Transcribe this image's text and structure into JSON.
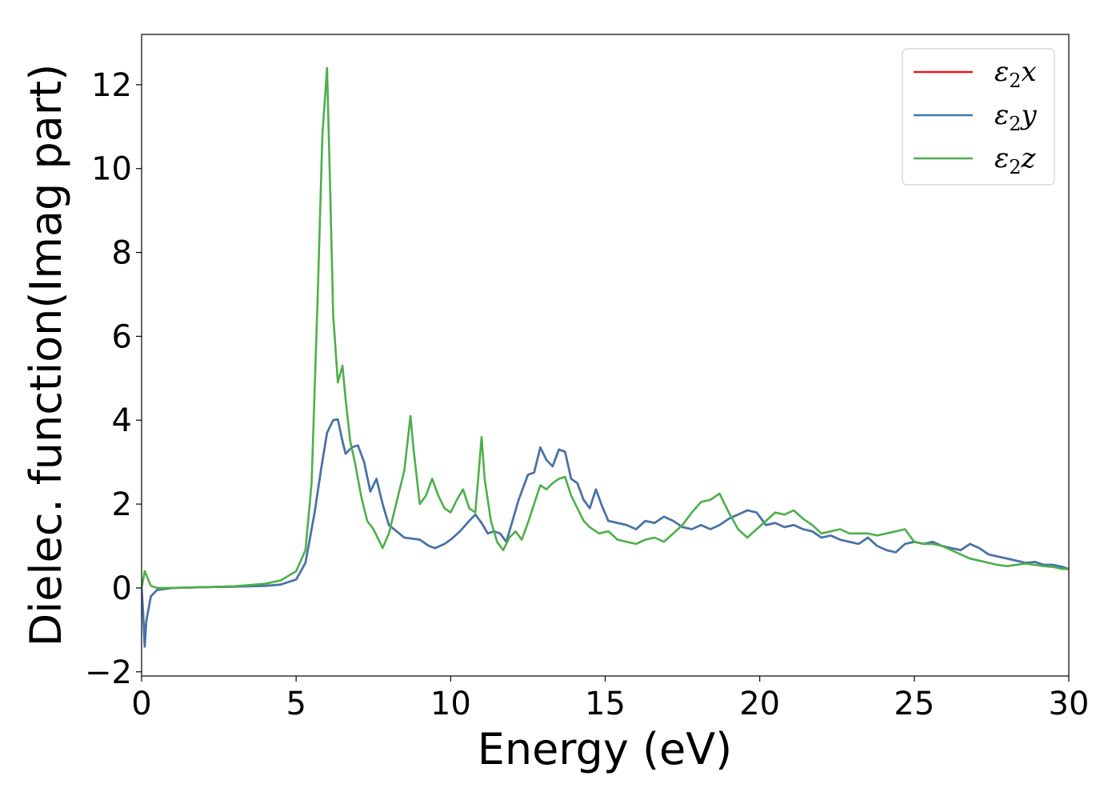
{
  "chart_data": {
    "type": "line",
    "title": "",
    "xlabel": "Energy (eV)",
    "ylabel": "Dielec. function(Imag part)",
    "xlim": [
      0,
      30
    ],
    "ylim": [
      -2.1,
      13.2
    ],
    "xticks": [
      0,
      5,
      10,
      15,
      20,
      25,
      30
    ],
    "yticks": [
      -2,
      0,
      2,
      4,
      6,
      8,
      10,
      12
    ],
    "xtick_labels": [
      "0",
      "5",
      "10",
      "15",
      "20",
      "25",
      "30"
    ],
    "ytick_labels": [
      "−2",
      "0",
      "2",
      "4",
      "6",
      "8",
      "10",
      "12"
    ],
    "grid": false,
    "legend_position": "upper right",
    "series": [
      {
        "name": "ε₂x",
        "label_sub": [
          "ε",
          "2",
          "x"
        ],
        "color": "#e41a1c",
        "x": [
          0.0,
          0.05,
          0.1,
          0.15,
          0.3,
          0.5,
          1.0,
          2.0,
          3.0,
          4.0,
          4.5,
          5.0,
          5.3,
          5.6,
          5.8,
          6.0,
          6.2,
          6.35,
          6.5,
          6.6,
          6.8,
          7.0,
          7.2,
          7.4,
          7.6,
          7.8,
          8.0,
          8.5,
          9.0,
          9.3,
          9.5,
          9.8,
          10.0,
          10.3,
          10.6,
          10.8,
          11.0,
          11.2,
          11.4,
          11.6,
          11.8,
          12.0,
          12.2,
          12.5,
          12.7,
          12.9,
          13.1,
          13.3,
          13.5,
          13.7,
          13.9,
          14.1,
          14.3,
          14.5,
          14.7,
          14.9,
          15.1,
          15.4,
          15.7,
          16.0,
          16.3,
          16.6,
          16.9,
          17.2,
          17.5,
          17.8,
          18.1,
          18.4,
          18.7,
          19.0,
          19.3,
          19.6,
          19.9,
          20.2,
          20.5,
          20.8,
          21.1,
          21.4,
          21.7,
          22.0,
          22.3,
          22.6,
          22.9,
          23.2,
          23.5,
          23.8,
          24.1,
          24.4,
          24.7,
          25.0,
          25.3,
          25.6,
          25.9,
          26.2,
          26.5,
          26.8,
          27.1,
          27.4,
          27.7,
          28.0,
          28.3,
          28.6,
          28.9,
          29.2,
          29.5,
          29.8,
          30.0
        ],
        "y": [
          0.0,
          -0.6,
          -1.4,
          -0.8,
          -0.2,
          -0.05,
          0.0,
          0.02,
          0.03,
          0.05,
          0.08,
          0.2,
          0.6,
          1.8,
          2.8,
          3.7,
          4.0,
          4.02,
          3.5,
          3.2,
          3.35,
          3.4,
          3.0,
          2.3,
          2.6,
          2.0,
          1.5,
          1.2,
          1.15,
          1.0,
          0.95,
          1.05,
          1.15,
          1.35,
          1.6,
          1.75,
          1.55,
          1.3,
          1.35,
          1.3,
          1.1,
          1.6,
          2.1,
          2.7,
          2.75,
          3.35,
          3.05,
          2.9,
          3.3,
          3.25,
          2.6,
          2.5,
          2.1,
          1.9,
          2.35,
          1.95,
          1.6,
          1.55,
          1.5,
          1.4,
          1.6,
          1.55,
          1.7,
          1.6,
          1.45,
          1.4,
          1.5,
          1.4,
          1.5,
          1.65,
          1.75,
          1.85,
          1.8,
          1.5,
          1.55,
          1.45,
          1.5,
          1.4,
          1.35,
          1.2,
          1.25,
          1.15,
          1.1,
          1.05,
          1.2,
          1.0,
          0.9,
          0.85,
          1.05,
          1.1,
          1.05,
          1.1,
          1.0,
          0.95,
          0.9,
          1.05,
          0.95,
          0.8,
          0.75,
          0.7,
          0.65,
          0.6,
          0.62,
          0.55,
          0.55,
          0.5,
          0.45
        ]
      },
      {
        "name": "ε₂y",
        "label_sub": [
          "ε",
          "2",
          "y"
        ],
        "color": "#4077ad",
        "x": [
          0.0,
          0.05,
          0.1,
          0.15,
          0.3,
          0.5,
          1.0,
          2.0,
          3.0,
          4.0,
          4.5,
          5.0,
          5.3,
          5.6,
          5.8,
          6.0,
          6.2,
          6.35,
          6.5,
          6.6,
          6.8,
          7.0,
          7.2,
          7.4,
          7.6,
          7.8,
          8.0,
          8.5,
          9.0,
          9.3,
          9.5,
          9.8,
          10.0,
          10.3,
          10.6,
          10.8,
          11.0,
          11.2,
          11.4,
          11.6,
          11.8,
          12.0,
          12.2,
          12.5,
          12.7,
          12.9,
          13.1,
          13.3,
          13.5,
          13.7,
          13.9,
          14.1,
          14.3,
          14.5,
          14.7,
          14.9,
          15.1,
          15.4,
          15.7,
          16.0,
          16.3,
          16.6,
          16.9,
          17.2,
          17.5,
          17.8,
          18.1,
          18.4,
          18.7,
          19.0,
          19.3,
          19.6,
          19.9,
          20.2,
          20.5,
          20.8,
          21.1,
          21.4,
          21.7,
          22.0,
          22.3,
          22.6,
          22.9,
          23.2,
          23.5,
          23.8,
          24.1,
          24.4,
          24.7,
          25.0,
          25.3,
          25.6,
          25.9,
          26.2,
          26.5,
          26.8,
          27.1,
          27.4,
          27.7,
          28.0,
          28.3,
          28.6,
          28.9,
          29.2,
          29.5,
          29.8,
          30.0
        ],
        "y": [
          0.0,
          -0.6,
          -1.4,
          -0.8,
          -0.2,
          -0.05,
          0.0,
          0.02,
          0.03,
          0.05,
          0.08,
          0.2,
          0.6,
          1.8,
          2.8,
          3.7,
          4.0,
          4.02,
          3.5,
          3.2,
          3.35,
          3.4,
          3.0,
          2.3,
          2.6,
          2.0,
          1.5,
          1.2,
          1.15,
          1.0,
          0.95,
          1.05,
          1.15,
          1.35,
          1.6,
          1.75,
          1.55,
          1.3,
          1.35,
          1.3,
          1.1,
          1.6,
          2.1,
          2.7,
          2.75,
          3.35,
          3.05,
          2.9,
          3.3,
          3.25,
          2.6,
          2.5,
          2.1,
          1.9,
          2.35,
          1.95,
          1.6,
          1.55,
          1.5,
          1.4,
          1.6,
          1.55,
          1.7,
          1.6,
          1.45,
          1.4,
          1.5,
          1.4,
          1.5,
          1.65,
          1.75,
          1.85,
          1.8,
          1.5,
          1.55,
          1.45,
          1.5,
          1.4,
          1.35,
          1.2,
          1.25,
          1.15,
          1.1,
          1.05,
          1.2,
          1.0,
          0.9,
          0.85,
          1.05,
          1.1,
          1.05,
          1.1,
          1.0,
          0.95,
          0.9,
          1.05,
          0.95,
          0.8,
          0.75,
          0.7,
          0.65,
          0.6,
          0.62,
          0.55,
          0.55,
          0.5,
          0.45
        ]
      },
      {
        "name": "ε₂z",
        "label_sub": [
          "ε",
          "2",
          "z"
        ],
        "color": "#4daf4a",
        "x": [
          0.0,
          0.1,
          0.3,
          0.5,
          1.0,
          2.0,
          3.0,
          4.0,
          4.5,
          5.0,
          5.3,
          5.5,
          5.7,
          5.85,
          6.0,
          6.1,
          6.2,
          6.35,
          6.5,
          6.6,
          6.75,
          6.9,
          7.1,
          7.3,
          7.5,
          7.8,
          8.0,
          8.3,
          8.5,
          8.7,
          8.8,
          9.0,
          9.2,
          9.4,
          9.6,
          9.8,
          10.0,
          10.2,
          10.4,
          10.6,
          10.8,
          11.0,
          11.1,
          11.3,
          11.5,
          11.7,
          11.9,
          12.1,
          12.3,
          12.5,
          12.7,
          12.9,
          13.1,
          13.3,
          13.5,
          13.7,
          13.9,
          14.1,
          14.3,
          14.5,
          14.8,
          15.1,
          15.4,
          15.7,
          16.0,
          16.3,
          16.6,
          16.9,
          17.2,
          17.5,
          17.8,
          18.1,
          18.4,
          18.7,
          19.0,
          19.3,
          19.6,
          19.9,
          20.2,
          20.5,
          20.8,
          21.1,
          21.4,
          21.7,
          22.0,
          22.3,
          22.6,
          22.9,
          23.2,
          23.5,
          23.8,
          24.1,
          24.4,
          24.7,
          25.0,
          25.3,
          25.6,
          25.9,
          26.2,
          26.5,
          26.8,
          27.1,
          27.4,
          27.7,
          28.0,
          28.3,
          28.6,
          28.9,
          29.2,
          29.5,
          29.8,
          30.0
        ],
        "y": [
          0.0,
          0.4,
          0.05,
          0.0,
          0.0,
          0.02,
          0.04,
          0.1,
          0.18,
          0.4,
          0.9,
          2.5,
          7.0,
          10.8,
          12.4,
          9.5,
          6.5,
          4.9,
          5.3,
          4.5,
          3.5,
          3.0,
          2.2,
          1.6,
          1.4,
          0.95,
          1.3,
          2.2,
          2.8,
          4.1,
          3.3,
          2.0,
          2.2,
          2.6,
          2.2,
          1.9,
          1.8,
          2.1,
          2.35,
          1.9,
          1.8,
          3.6,
          2.6,
          1.6,
          1.1,
          0.9,
          1.2,
          1.35,
          1.15,
          1.55,
          2.0,
          2.45,
          2.35,
          2.5,
          2.6,
          2.65,
          2.2,
          1.9,
          1.6,
          1.45,
          1.3,
          1.35,
          1.15,
          1.1,
          1.05,
          1.15,
          1.2,
          1.1,
          1.3,
          1.5,
          1.8,
          2.05,
          2.1,
          2.25,
          1.8,
          1.4,
          1.2,
          1.4,
          1.6,
          1.8,
          1.75,
          1.85,
          1.65,
          1.5,
          1.3,
          1.35,
          1.4,
          1.3,
          1.3,
          1.3,
          1.25,
          1.3,
          1.35,
          1.4,
          1.1,
          1.05,
          1.05,
          1.0,
          0.9,
          0.8,
          0.7,
          0.65,
          0.6,
          0.55,
          0.52,
          0.55,
          0.58,
          0.55,
          0.52,
          0.5,
          0.45,
          0.45
        ]
      }
    ]
  }
}
